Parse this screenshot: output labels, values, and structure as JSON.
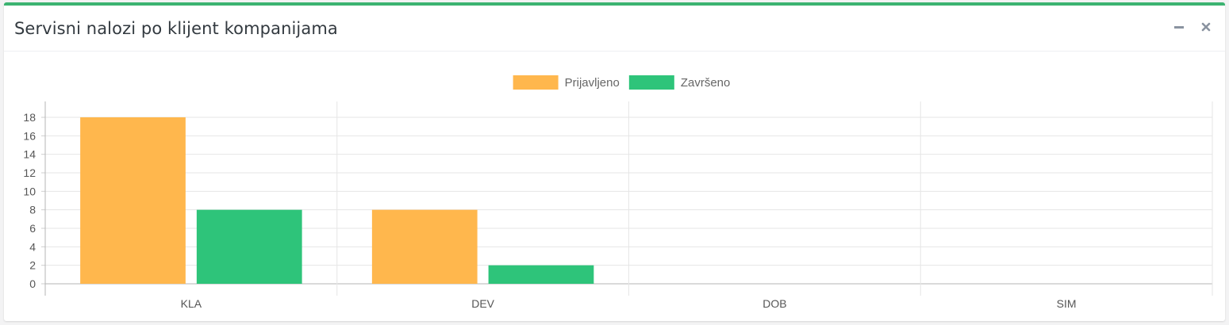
{
  "panel": {
    "title": "Servisni nalozi po klijent kompanijama",
    "accent_color": "#3cb371"
  },
  "tools": {
    "minimize_icon": "minus-icon",
    "close_icon": "close-icon"
  },
  "chart_data": {
    "type": "bar",
    "categories": [
      "KLA",
      "DEV",
      "DOB",
      "SIM"
    ],
    "series": [
      {
        "name": "Prijavljeno",
        "color": "#ffb74d",
        "values": [
          18,
          8,
          0,
          0
        ]
      },
      {
        "name": "Završeno",
        "color": "#2ec47a",
        "values": [
          8,
          2,
          0,
          0
        ]
      }
    ],
    "yticks": [
      0,
      2,
      4,
      6,
      8,
      10,
      12,
      14,
      16,
      18
    ],
    "ylim": [
      0,
      18
    ],
    "grid": true,
    "legend_position": "top-center"
  }
}
